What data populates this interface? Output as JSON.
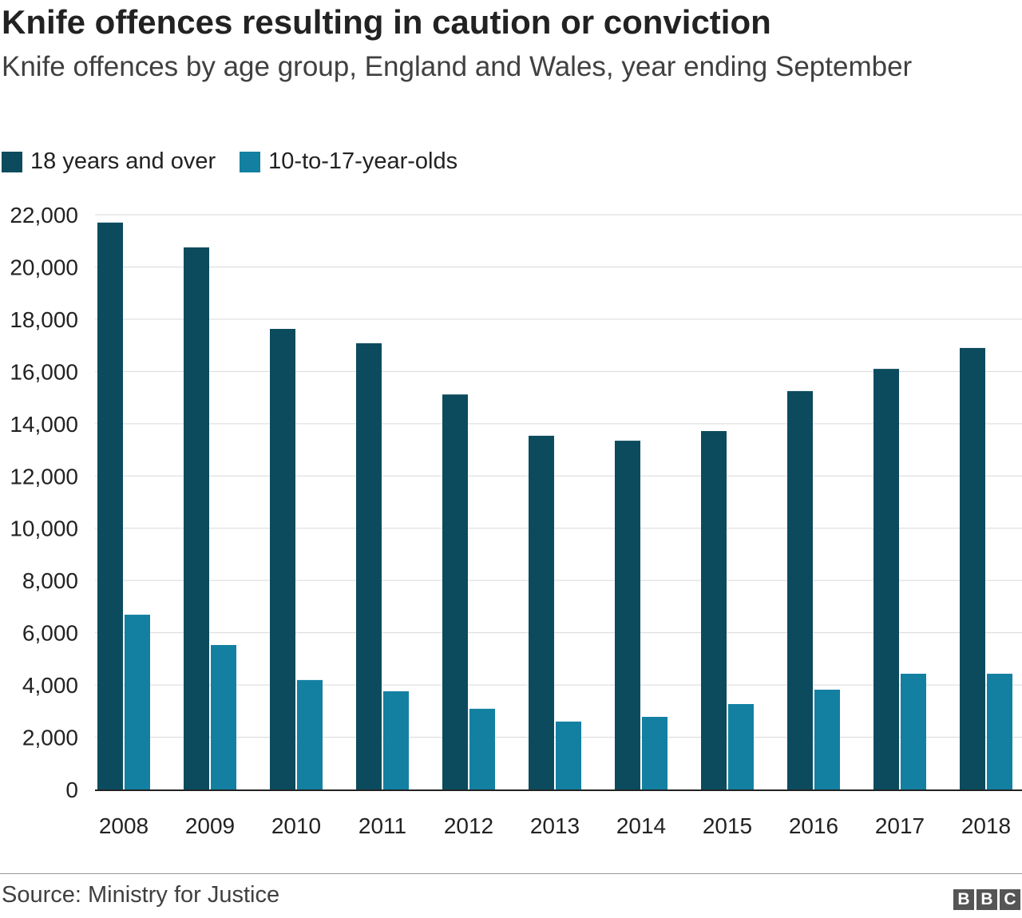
{
  "chart_data": {
    "type": "bar",
    "title": "Knife offences resulting in caution or conviction",
    "subtitle": "Knife offences by age group, England and Wales, year ending September",
    "categories": [
      "2008",
      "2009",
      "2010",
      "2011",
      "2012",
      "2013",
      "2014",
      "2015",
      "2016",
      "2017",
      "2018"
    ],
    "series": [
      {
        "name": "18 years and over",
        "color": "#0c4b5e",
        "values": [
          21700,
          20750,
          17630,
          17080,
          15120,
          13540,
          13350,
          13720,
          15250,
          16100,
          16900
        ]
      },
      {
        "name": "10-to-17-year-olds",
        "color": "#1380a1",
        "values": [
          6690,
          5530,
          4190,
          3760,
          3090,
          2600,
          2780,
          3270,
          3820,
          4430,
          4430
        ]
      }
    ],
    "ylim": [
      0,
      22000
    ],
    "yticks": [
      "0",
      "2,000",
      "4,000",
      "6,000",
      "8,000",
      "10,000",
      "12,000",
      "14,000",
      "16,000",
      "18,000",
      "20,000",
      "22,000"
    ],
    "grid": true,
    "legend": "top-left",
    "source": "Source: Ministry for Justice",
    "logo": "BBC"
  }
}
